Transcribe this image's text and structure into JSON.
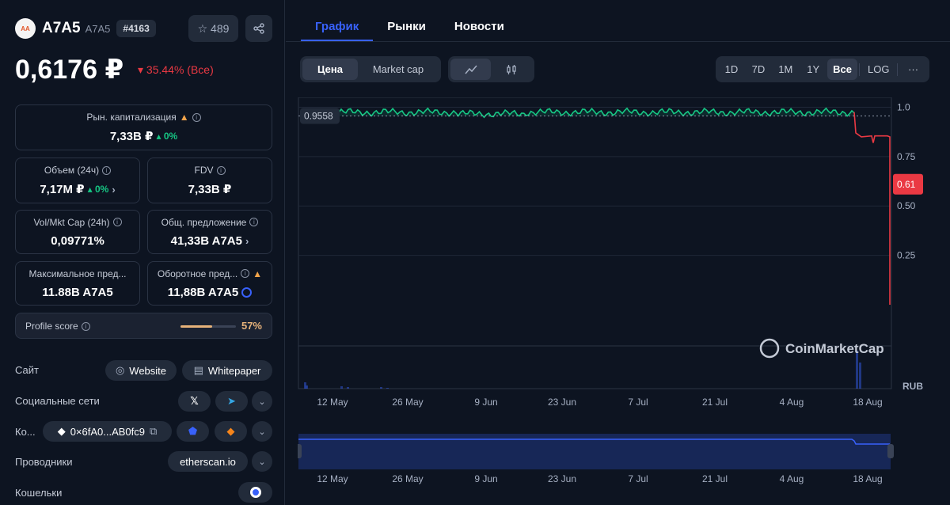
{
  "coin": {
    "logo_text": "AA",
    "name": "A7A5",
    "symbol": "A7A5",
    "rank": "#4163",
    "watchlist_count": "489",
    "price": "0,6176 ₽",
    "change": "35.44% (Все)"
  },
  "stats": {
    "market_cap": {
      "label": "Рын. капитализация",
      "value": "7,33B ₽",
      "change": "0%"
    },
    "volume": {
      "label": "Объем (24ч)",
      "value": "7,17M ₽",
      "change": "0%"
    },
    "fdv": {
      "label": "FDV",
      "value": "7,33B ₽"
    },
    "vol_mkt_cap": {
      "label": "Vol/Mkt Cap (24h)",
      "value": "0,09771%"
    },
    "total_supply": {
      "label": "Общ. предложение",
      "value": "41,33B A7A5"
    },
    "max_supply": {
      "label": "Максимальное пред...",
      "value": "11.88B A7A5"
    },
    "circ_supply": {
      "label": "Оборотное пред...",
      "value": "11,88B A7A5"
    }
  },
  "profile": {
    "label": "Profile score",
    "value": "57%",
    "fraction": 0.57
  },
  "links": {
    "site_label": "Сайт",
    "website": "Website",
    "whitepaper": "Whitepaper",
    "social_label": "Социальные сети",
    "contract_label": "Ко...",
    "contract": "0×6fA0...AB0fc9",
    "explorers_label": "Проводники",
    "explorer": "etherscan.io",
    "wallets_label": "Кошельки"
  },
  "tabs": [
    {
      "label": "График"
    },
    {
      "label": "Рынки"
    },
    {
      "label": "Новости"
    }
  ],
  "chart_controls": {
    "type_options": [
      "Цена",
      "Market cap"
    ],
    "ranges": [
      "1D",
      "7D",
      "1M",
      "1Y",
      "Все",
      "LOG"
    ],
    "more": "···"
  },
  "chart_data": {
    "type": "line",
    "x": [
      "12 May",
      "26 May",
      "9 Jun",
      "23 Jun",
      "7 Jul",
      "21 Jul",
      "4 Aug",
      "18 Aug"
    ],
    "y_ticks": [
      "1.0",
      "0.75",
      "0.50",
      "0.25"
    ],
    "ylim": [
      0,
      1.05
    ],
    "reference_label": "0.9558",
    "current_label": "0.61",
    "currency": "RUB",
    "watermark": "CoinMarketCap",
    "colors": {
      "up": "#16c784",
      "down": "#ea3943",
      "nav": "#3861fb"
    }
  }
}
